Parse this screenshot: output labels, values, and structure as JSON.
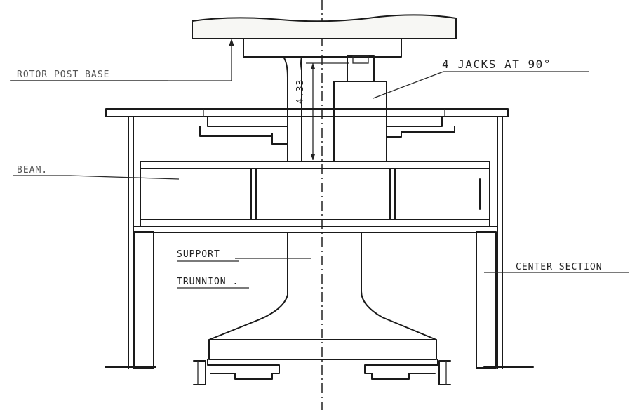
{
  "labels": {
    "rotor_post_base": "ROTOR POST BASE",
    "jacks": "4 JACKS AT 90°",
    "beam": "BEAM.",
    "support": "SUPPORT",
    "trunnion": "TRUNNION .",
    "center_section": "CENTER SECTION",
    "dimension": "4.33"
  }
}
